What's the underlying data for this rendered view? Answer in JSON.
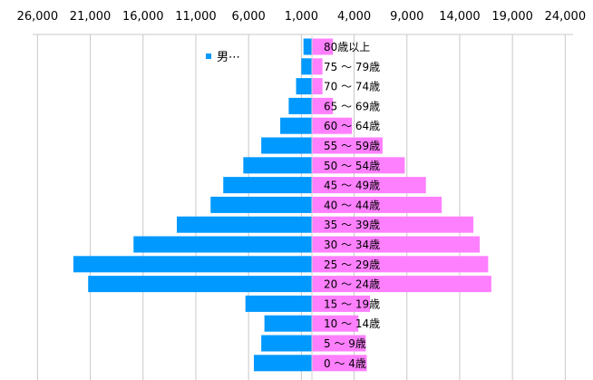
{
  "chart_data": {
    "type": "bar",
    "orientation": "horizontal",
    "subtype": "population-pyramid",
    "title": "",
    "xlabel": "",
    "ylabel": "",
    "x_tick_labels": [
      "26,000",
      "21,000",
      "16,000",
      "11,000",
      "6,000",
      "1,000",
      "4,000",
      "9,000",
      "14,000",
      "19,000",
      "24,000"
    ],
    "xlim": [
      -27000,
      27000
    ],
    "grid": "vertical",
    "legend": {
      "label": "男⋯",
      "position": "top-left"
    },
    "categories": [
      "80歳以上",
      "75 ～ 79歳",
      "70 ～ 74歳",
      "65 ～ 69歳",
      "60 ～ 64歳",
      "55 ～ 59歳",
      "50 ～ 54歳",
      "45 ～ 49歳",
      "40 ～ 44歳",
      "35 ～ 39歳",
      "30 ～ 34歳",
      "25 ～ 29歳",
      "20 ～ 24歳",
      "15 ～ 19歳",
      "10 ～ 14歳",
      "5 ～ 9歳",
      "0 ～ 4歳"
    ],
    "series": [
      {
        "name": "男⋯",
        "color": "#0099FF",
        "side": "left",
        "values": [
          800,
          1000,
          1500,
          2200,
          3000,
          4800,
          6500,
          8400,
          9600,
          12800,
          16900,
          22600,
          21200,
          6300,
          4500,
          4800,
          5500
        ]
      },
      {
        "color": "#FF80FF",
        "side": "right",
        "values": [
          2000,
          1000,
          1000,
          2000,
          3800,
          6700,
          8800,
          10800,
          12300,
          15300,
          15900,
          16700,
          17000,
          5500,
          4400,
          5100,
          5200
        ]
      }
    ]
  }
}
